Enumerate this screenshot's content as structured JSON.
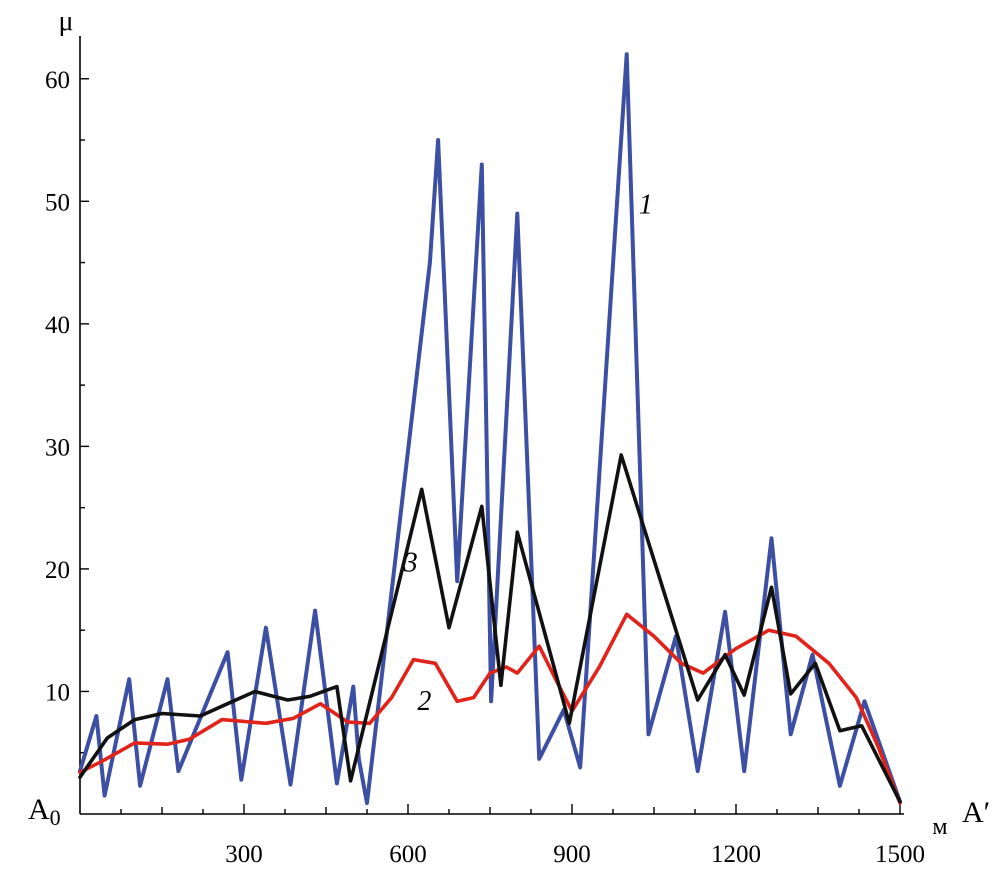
{
  "chart_data": {
    "type": "line",
    "ylabel": "μ",
    "xlabel": "м",
    "origin_label": "A",
    "origin_subscript": "0",
    "end_label": "A′",
    "xlim": [
      0,
      1500
    ],
    "ylim": [
      0,
      63
    ],
    "x_ticks": [
      300,
      600,
      900,
      1200,
      1500
    ],
    "y_ticks": [
      10,
      20,
      30,
      40,
      50,
      60
    ],
    "grid": false,
    "legend": "none",
    "series": [
      {
        "name": "1",
        "color": "#3c4fa3",
        "points": [
          [
            0,
            3.5
          ],
          [
            30,
            8
          ],
          [
            45,
            1.5
          ],
          [
            90,
            11
          ],
          [
            110,
            2.3
          ],
          [
            160,
            11
          ],
          [
            180,
            3.5
          ],
          [
            270,
            13.2
          ],
          [
            295,
            2.8
          ],
          [
            340,
            15.2
          ],
          [
            385,
            2.4
          ],
          [
            430,
            16.6
          ],
          [
            470,
            2.5
          ],
          [
            500,
            10.4
          ],
          [
            510,
            4.5
          ],
          [
            525,
            0.9
          ],
          [
            640,
            45
          ],
          [
            655,
            55
          ],
          [
            690,
            19
          ],
          [
            735,
            53
          ],
          [
            752,
            9.2
          ],
          [
            800,
            49
          ],
          [
            840,
            4.5
          ],
          [
            885,
            8.5
          ],
          [
            915,
            3.8
          ],
          [
            1000,
            62
          ],
          [
            1040,
            6.5
          ],
          [
            1090,
            14.5
          ],
          [
            1130,
            3.5
          ],
          [
            1180,
            16.5
          ],
          [
            1215,
            3.5
          ],
          [
            1265,
            22.5
          ],
          [
            1300,
            6.5
          ],
          [
            1340,
            13
          ],
          [
            1390,
            2.3
          ],
          [
            1435,
            9.2
          ],
          [
            1500,
            1
          ]
        ]
      },
      {
        "name": "2",
        "color": "#e2231a",
        "points": [
          [
            0,
            3.4
          ],
          [
            40,
            4.3
          ],
          [
            100,
            5.8
          ],
          [
            160,
            5.7
          ],
          [
            200,
            6.1
          ],
          [
            260,
            7.7
          ],
          [
            340,
            7.4
          ],
          [
            390,
            7.8
          ],
          [
            440,
            9
          ],
          [
            490,
            7.5
          ],
          [
            530,
            7.4
          ],
          [
            570,
            9.5
          ],
          [
            610,
            12.6
          ],
          [
            650,
            12.3
          ],
          [
            690,
            9.2
          ],
          [
            720,
            9.5
          ],
          [
            750,
            11.5
          ],
          [
            780,
            12
          ],
          [
            800,
            11.5
          ],
          [
            840,
            13.7
          ],
          [
            870,
            11
          ],
          [
            900,
            8.4
          ],
          [
            950,
            12
          ],
          [
            1000,
            16.3
          ],
          [
            1050,
            14.5
          ],
          [
            1100,
            12.3
          ],
          [
            1140,
            11.5
          ],
          [
            1200,
            13.5
          ],
          [
            1260,
            15
          ],
          [
            1310,
            14.5
          ],
          [
            1370,
            12.3
          ],
          [
            1420,
            9.5
          ],
          [
            1460,
            5.5
          ],
          [
            1500,
            0.9
          ]
        ]
      },
      {
        "name": "3",
        "color": "#111111",
        "points": [
          [
            0,
            3
          ],
          [
            50,
            6.2
          ],
          [
            100,
            7.7
          ],
          [
            150,
            8.2
          ],
          [
            220,
            8
          ],
          [
            270,
            9
          ],
          [
            320,
            10
          ],
          [
            380,
            9.3
          ],
          [
            420,
            9.6
          ],
          [
            470,
            10.4
          ],
          [
            495,
            2.7
          ],
          [
            625,
            26.5
          ],
          [
            675,
            15.2
          ],
          [
            735,
            25.1
          ],
          [
            770,
            10.5
          ],
          [
            800,
            23
          ],
          [
            895,
            7.4
          ],
          [
            990,
            29.3
          ],
          [
            1130,
            9.3
          ],
          [
            1180,
            13
          ],
          [
            1215,
            9.7
          ],
          [
            1265,
            18.5
          ],
          [
            1300,
            9.8
          ],
          [
            1345,
            12.3
          ],
          [
            1390,
            6.8
          ],
          [
            1430,
            7.2
          ],
          [
            1500,
            1
          ]
        ]
      }
    ],
    "series_label_anchors": [
      {
        "name": "1",
        "x": 1035,
        "y": 49
      },
      {
        "name": "2",
        "x": 630,
        "y": 8.5
      },
      {
        "name": "3",
        "x": 605,
        "y": 19.8
      }
    ]
  }
}
